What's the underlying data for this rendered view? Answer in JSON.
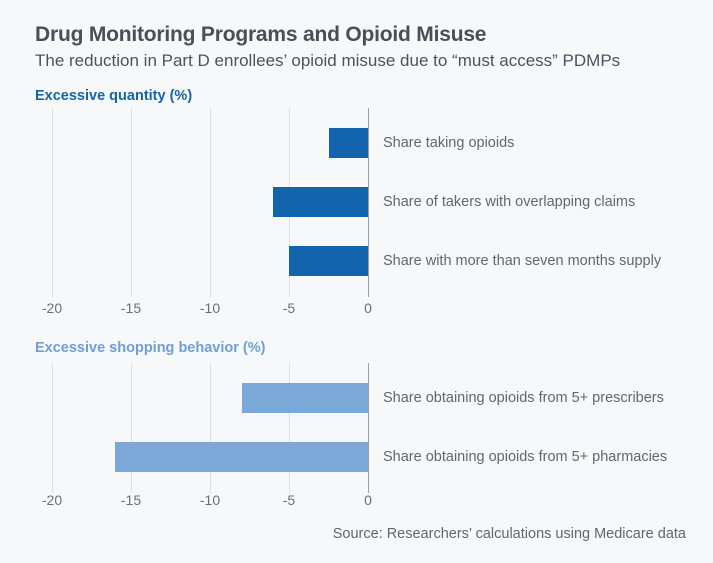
{
  "header": {
    "title": "Drug Monitoring Programs and Opioid Misuse",
    "subtitle": "The reduction in Part D enrollees’ opioid misuse due to “must access” PDMPs"
  },
  "source": "Source: Researchers’ calculations using Medicare data",
  "colors": {
    "background": "#f7f8fa",
    "title_text": "#4a4f57",
    "label_text": "#63666c",
    "gridline": "#dcdfe4",
    "zero_line": "#9aa0a8",
    "dark_blue": "#1265ad",
    "light_blue": "#7ba7d9",
    "section1_label": "#1465ad",
    "section2_label": "#6f9ed9"
  },
  "chart_data": [
    {
      "type": "bar",
      "orientation": "horizontal",
      "section_label": "Excessive quantity (%)",
      "bar_color": "#1265ad",
      "label_color": "#1465ad",
      "categories": [
        "Share taking opioids",
        "Share of takers with overlapping claims",
        "Share with more than seven months supply"
      ],
      "values": [
        -2.5,
        -6,
        -5
      ],
      "xlim": [
        -20,
        0
      ],
      "xticks": [
        -20,
        -15,
        -10,
        -5,
        0
      ],
      "grid": true,
      "legend": false
    },
    {
      "type": "bar",
      "orientation": "horizontal",
      "section_label": "Excessive shopping behavior (%)",
      "bar_color": "#7ba7d9",
      "label_color": "#6f9ed9",
      "categories": [
        "Share obtaining opioids from 5+ prescribers",
        "Share obtaining opioids from 5+ pharmacies"
      ],
      "values": [
        -8,
        -16
      ],
      "xlim": [
        -20,
        0
      ],
      "xticks": [
        -20,
        -15,
        -10,
        -5,
        0
      ],
      "grid": true,
      "legend": false
    }
  ]
}
